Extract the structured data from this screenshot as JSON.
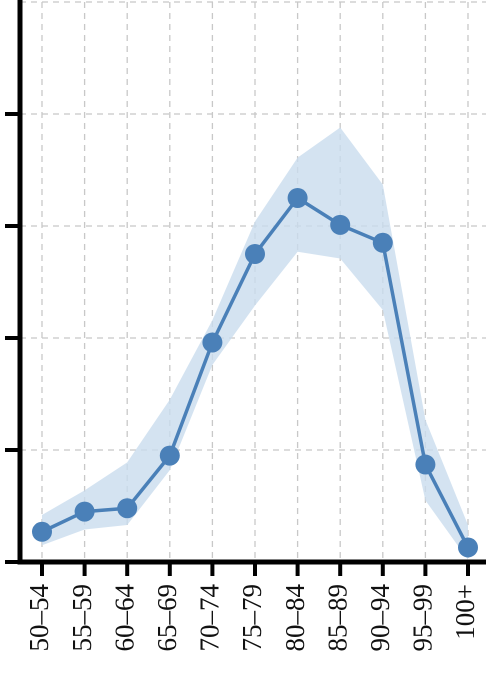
{
  "chart_data": {
    "type": "line",
    "categories": [
      "50–54",
      "55–59",
      "60–64",
      "65–69",
      "70–74",
      "75–79",
      "80–84",
      "85–89",
      "90–94",
      "95–99",
      "100+"
    ],
    "series": [
      {
        "color": "#4a80b8",
        "band_color": "#c9dcee",
        "values": [
          0.27,
          0.45,
          0.48,
          0.95,
          1.96,
          2.75,
          3.25,
          3.01,
          2.85,
          0.87,
          0.13
        ],
        "lower": [
          0.15,
          0.29,
          0.33,
          0.82,
          1.76,
          2.29,
          2.77,
          2.71,
          2.25,
          0.55,
          0.02
        ],
        "upper": [
          0.42,
          0.64,
          0.89,
          1.45,
          2.16,
          3.04,
          3.61,
          3.88,
          3.37,
          1.27,
          0.33
        ]
      }
    ],
    "ylim": [
      0,
      5
    ],
    "yticks": [
      0,
      1,
      2,
      3,
      4,
      5
    ],
    "grid": true
  }
}
